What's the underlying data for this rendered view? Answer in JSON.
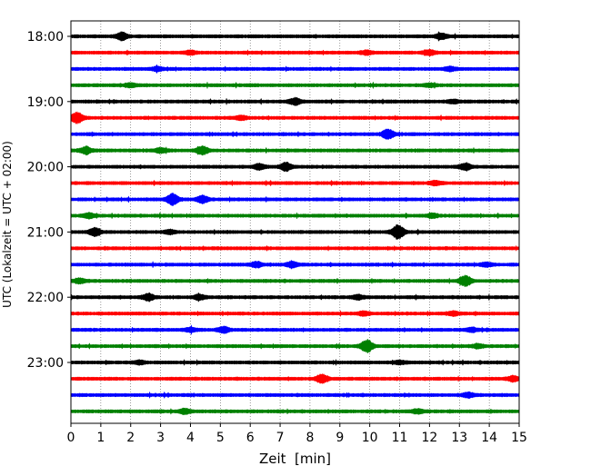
{
  "chart_data": {
    "type": "line",
    "title": "",
    "xlabel": "Zeit  [min]",
    "ylabel": "UTC (Lokalzeit = UTC + 02:00)",
    "xlim": [
      0,
      15
    ],
    "x_ticks": [
      "0",
      "1",
      "2",
      "3",
      "4",
      "5",
      "6",
      "7",
      "8",
      "9",
      "10",
      "11",
      "12",
      "13",
      "14",
      "15"
    ],
    "y_ticks": [
      "18:00",
      "19:00",
      "20:00",
      "21:00",
      "22:00",
      "23:00"
    ],
    "grid": "vertical dotted",
    "line_colors": [
      "#000000",
      "#ff0000",
      "#0000ff",
      "#008000"
    ],
    "traces": [
      {
        "time": "18:00",
        "color": "#000000",
        "bursts": [
          [
            1.7,
            3.0
          ],
          [
            12.4,
            2.2
          ]
        ]
      },
      {
        "time": "18:15",
        "color": "#ff0000",
        "bursts": [
          [
            4.0,
            1.5
          ],
          [
            9.9,
            1.5
          ],
          [
            12.0,
            2.0
          ]
        ]
      },
      {
        "time": "18:30",
        "color": "#0000ff",
        "bursts": [
          [
            2.9,
            1.5
          ],
          [
            12.7,
            1.6
          ]
        ]
      },
      {
        "time": "18:45",
        "color": "#008000",
        "bursts": [
          [
            2.0,
            1.5
          ],
          [
            12.0,
            1.2
          ]
        ]
      },
      {
        "time": "19:00",
        "color": "#000000",
        "bursts": [
          [
            7.5,
            2.8
          ],
          [
            12.8,
            1.2
          ]
        ]
      },
      {
        "time": "19:15",
        "color": "#ff0000",
        "bursts": [
          [
            0.2,
            4.5
          ],
          [
            5.7,
            1.5
          ]
        ]
      },
      {
        "time": "19:30",
        "color": "#0000ff",
        "bursts": [
          [
            10.6,
            4.5
          ]
        ]
      },
      {
        "time": "19:45",
        "color": "#008000",
        "bursts": [
          [
            0.5,
            3.0
          ],
          [
            4.4,
            3.5
          ],
          [
            3.0,
            1.8
          ]
        ]
      },
      {
        "time": "20:00",
        "color": "#000000",
        "bursts": [
          [
            6.3,
            2.2
          ],
          [
            7.2,
            3.2
          ],
          [
            13.2,
            3.0
          ]
        ]
      },
      {
        "time": "20:15",
        "color": "#ff0000",
        "bursts": [
          [
            12.2,
            1.6
          ]
        ]
      },
      {
        "time": "20:30",
        "color": "#0000ff",
        "bursts": [
          [
            3.4,
            4.5
          ],
          [
            4.4,
            2.8
          ]
        ]
      },
      {
        "time": "20:45",
        "color": "#008000",
        "bursts": [
          [
            0.6,
            1.8
          ],
          [
            12.1,
            1.5
          ]
        ]
      },
      {
        "time": "21:00",
        "color": "#000000",
        "bursts": [
          [
            0.8,
            3.2
          ],
          [
            10.9,
            3.2
          ],
          [
            11.0,
            3.0
          ],
          [
            3.3,
            1.5
          ]
        ]
      },
      {
        "time": "21:15",
        "color": "#ff0000",
        "bursts": []
      },
      {
        "time": "21:30",
        "color": "#0000ff",
        "bursts": [
          [
            6.2,
            2.0
          ],
          [
            7.4,
            2.2
          ],
          [
            13.9,
            1.5
          ]
        ]
      },
      {
        "time": "21:45",
        "color": "#008000",
        "bursts": [
          [
            0.3,
            2.0
          ],
          [
            13.2,
            4.2
          ]
        ]
      },
      {
        "time": "22:00",
        "color": "#000000",
        "bursts": [
          [
            2.6,
            2.8
          ],
          [
            4.3,
            2.0
          ],
          [
            9.6,
            1.6
          ]
        ]
      },
      {
        "time": "22:15",
        "color": "#ff0000",
        "bursts": [
          [
            9.8,
            1.6
          ],
          [
            12.8,
            1.5
          ]
        ]
      },
      {
        "time": "22:30",
        "color": "#0000ff",
        "bursts": [
          [
            5.1,
            2.5
          ],
          [
            4.0,
            1.5
          ],
          [
            13.4,
            1.5
          ]
        ]
      },
      {
        "time": "22:45",
        "color": "#008000",
        "bursts": [
          [
            9.9,
            5.5
          ],
          [
            13.6,
            1.5
          ]
        ]
      },
      {
        "time": "23:00",
        "color": "#000000",
        "bursts": [
          [
            2.3,
            1.2
          ],
          [
            11.0,
            1.2
          ]
        ]
      },
      {
        "time": "23:15",
        "color": "#ff0000",
        "bursts": [
          [
            8.4,
            3.5
          ],
          [
            14.8,
            2.0
          ]
        ]
      },
      {
        "time": "23:30",
        "color": "#0000ff",
        "bursts": [
          [
            13.3,
            1.8
          ]
        ]
      },
      {
        "time": "23:45",
        "color": "#008000",
        "bursts": [
          [
            3.8,
            1.8
          ],
          [
            11.6,
            1.5
          ]
        ]
      }
    ]
  }
}
